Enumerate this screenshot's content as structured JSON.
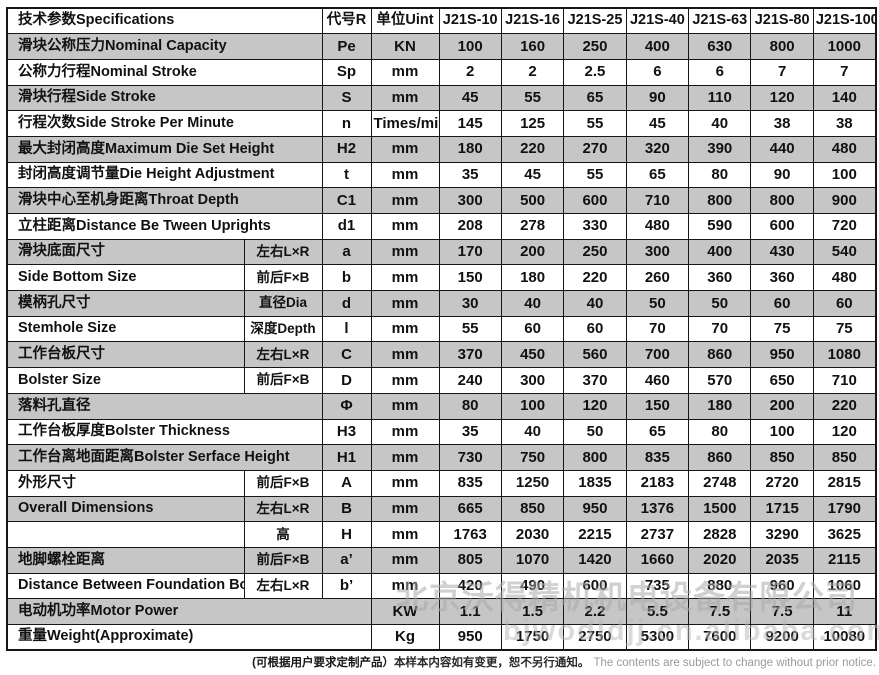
{
  "table": {
    "header": {
      "spec_label": "技术参数Specifications",
      "code_label": "代号R",
      "unit_label": "单位Uint",
      "models": [
        "J21S-10",
        "J21S-16",
        "J21S-25",
        "J21S-40",
        "J21S-63",
        "J21S-80",
        "J21S-100"
      ]
    },
    "rows": [
      {
        "label": "滑块公称压力Nominal Capacity",
        "sublabel": "",
        "span": "full",
        "code": "Pe",
        "unit": "KN",
        "values": [
          "100",
          "160",
          "250",
          "400",
          "630",
          "800",
          "1000"
        ]
      },
      {
        "label": "公称力行程Nominal Stroke",
        "sublabel": "",
        "span": "full",
        "code": "Sp",
        "unit": "mm",
        "values": [
          "2",
          "2",
          "2.5",
          "6",
          "6",
          "7",
          "7"
        ]
      },
      {
        "label": "滑块行程Side Stroke",
        "sublabel": "",
        "span": "full",
        "code": "S",
        "unit": "mm",
        "values": [
          "45",
          "55",
          "65",
          "90",
          "110",
          "120",
          "140"
        ]
      },
      {
        "label": "行程次数Side Stroke Per Minute",
        "sublabel": "",
        "span": "full",
        "code": "n",
        "unit": "Times/min",
        "values": [
          "145",
          "125",
          "55",
          "45",
          "40",
          "38",
          "38"
        ]
      },
      {
        "label": "最大封闭高度Maximum Die Set Height",
        "sublabel": "",
        "span": "full",
        "code": "H2",
        "unit": "mm",
        "values": [
          "180",
          "220",
          "270",
          "320",
          "390",
          "440",
          "480"
        ]
      },
      {
        "label": "封闭高度调节量Die Height Adjustment",
        "sublabel": "",
        "span": "full",
        "code": "t",
        "unit": "mm",
        "values": [
          "35",
          "45",
          "55",
          "65",
          "80",
          "90",
          "100"
        ]
      },
      {
        "label": "滑块中心至机身距离Throat Depth",
        "sublabel": "",
        "span": "full",
        "code": "C1",
        "unit": "mm",
        "values": [
          "300",
          "500",
          "600",
          "710",
          "800",
          "800",
          "900"
        ]
      },
      {
        "label": "立柱距离Distance Be Tween Uprights",
        "sublabel": "",
        "span": "full",
        "code": "d1",
        "unit": "mm",
        "values": [
          "208",
          "278",
          "330",
          "480",
          "590",
          "600",
          "720"
        ]
      },
      {
        "label": "滑块底面尺寸",
        "sublabel": "左右L×R",
        "span": "split",
        "code": "a",
        "unit": "mm",
        "values": [
          "170",
          "200",
          "250",
          "300",
          "400",
          "430",
          "540"
        ]
      },
      {
        "label": "Side Bottom Size",
        "sublabel": "前后F×B",
        "span": "split",
        "code": "b",
        "unit": "mm",
        "values": [
          "150",
          "180",
          "220",
          "260",
          "360",
          "360",
          "480"
        ]
      },
      {
        "label": "模柄孔尺寸",
        "sublabel": "直径Dia",
        "span": "split",
        "code": "d",
        "unit": "mm",
        "values": [
          "30",
          "40",
          "40",
          "50",
          "50",
          "60",
          "60"
        ]
      },
      {
        "label": "Stemhole Size",
        "sublabel": "深度Depth",
        "span": "split",
        "code": "l",
        "unit": "mm",
        "values": [
          "55",
          "60",
          "60",
          "70",
          "70",
          "75",
          "75"
        ]
      },
      {
        "label": "工作台板尺寸",
        "sublabel": "左右L×R",
        "span": "split",
        "code": "C",
        "unit": "mm",
        "values": [
          "370",
          "450",
          "560",
          "700",
          "860",
          "950",
          "1080"
        ]
      },
      {
        "label": "Bolster Size",
        "sublabel": "前后F×B",
        "span": "split",
        "code": "D",
        "unit": "mm",
        "values": [
          "240",
          "300",
          "370",
          "460",
          "570",
          "650",
          "710"
        ]
      },
      {
        "label": "落料孔直径",
        "sublabel": "",
        "span": "full",
        "code": "Φ",
        "unit": "mm",
        "values": [
          "80",
          "100",
          "120",
          "150",
          "180",
          "200",
          "220"
        ]
      },
      {
        "label": "工作台板厚度Bolster Thickness",
        "sublabel": "",
        "span": "full",
        "code": "H3",
        "unit": "mm",
        "values": [
          "35",
          "40",
          "50",
          "65",
          "80",
          "100",
          "120"
        ]
      },
      {
        "label": "工作台离地面距离Bolster Serface Height",
        "sublabel": "",
        "span": "full",
        "code": "H1",
        "unit": "mm",
        "values": [
          "730",
          "750",
          "800",
          "835",
          "860",
          "850",
          "850"
        ]
      },
      {
        "label": "外形尺寸",
        "sublabel": "前后F×B",
        "span": "split",
        "code": "A",
        "unit": "mm",
        "values": [
          "835",
          "1250",
          "1835",
          "2183",
          "2748",
          "2720",
          "2815"
        ]
      },
      {
        "label": "Overall Dimensions",
        "sublabel": "左右L×R",
        "span": "split",
        "code": "B",
        "unit": "mm",
        "values": [
          "665",
          "850",
          "950",
          "1376",
          "1500",
          "1715",
          "1790"
        ]
      },
      {
        "label": "",
        "sublabel": "高",
        "span": "split",
        "code": "H",
        "unit": "mm",
        "values": [
          "1763",
          "2030",
          "2215",
          "2737",
          "2828",
          "3290",
          "3625"
        ]
      },
      {
        "label": "地脚螺栓距离",
        "sublabel": "前后F×B",
        "span": "split",
        "code": "a’",
        "unit": "mm",
        "values": [
          "805",
          "1070",
          "1420",
          "1660",
          "2020",
          "2035",
          "2115"
        ]
      },
      {
        "label": "Distance Between Foundation Botts",
        "sublabel": "左右L×R",
        "span": "split",
        "code": "b’",
        "unit": "mm",
        "values": [
          "420",
          "490",
          "600",
          "735",
          "880",
          "960",
          "1060"
        ]
      },
      {
        "label": "电动机功率Motor Power",
        "sublabel": "",
        "span": "wide",
        "code": "",
        "unit": "KW",
        "values": [
          "1.1",
          "1.5",
          "2.2",
          "5.5",
          "7.5",
          "7.5",
          "11"
        ]
      },
      {
        "label": "重量Weight(Approximate)",
        "sublabel": "",
        "span": "wide",
        "code": "",
        "unit": "Kg",
        "values": [
          "950",
          "1750",
          "2750",
          "5300",
          "7600",
          "9200",
          "10080"
        ]
      }
    ]
  },
  "watermark": {
    "company": "北京沃得精机机电设备有限公司",
    "url": "bjwodldjj.cn.alibaba.com"
  },
  "footer": {
    "note_bold": "(可根据用户要求定制产品）",
    "note_cn": "本样本内容如有变更，恕不另行通知。",
    "note_en": "The contents are subject to change without prior notice."
  },
  "colors": {
    "row_shade": "#c6c6c6",
    "border": "#161616",
    "footer_gray": "#9a9a9a"
  }
}
